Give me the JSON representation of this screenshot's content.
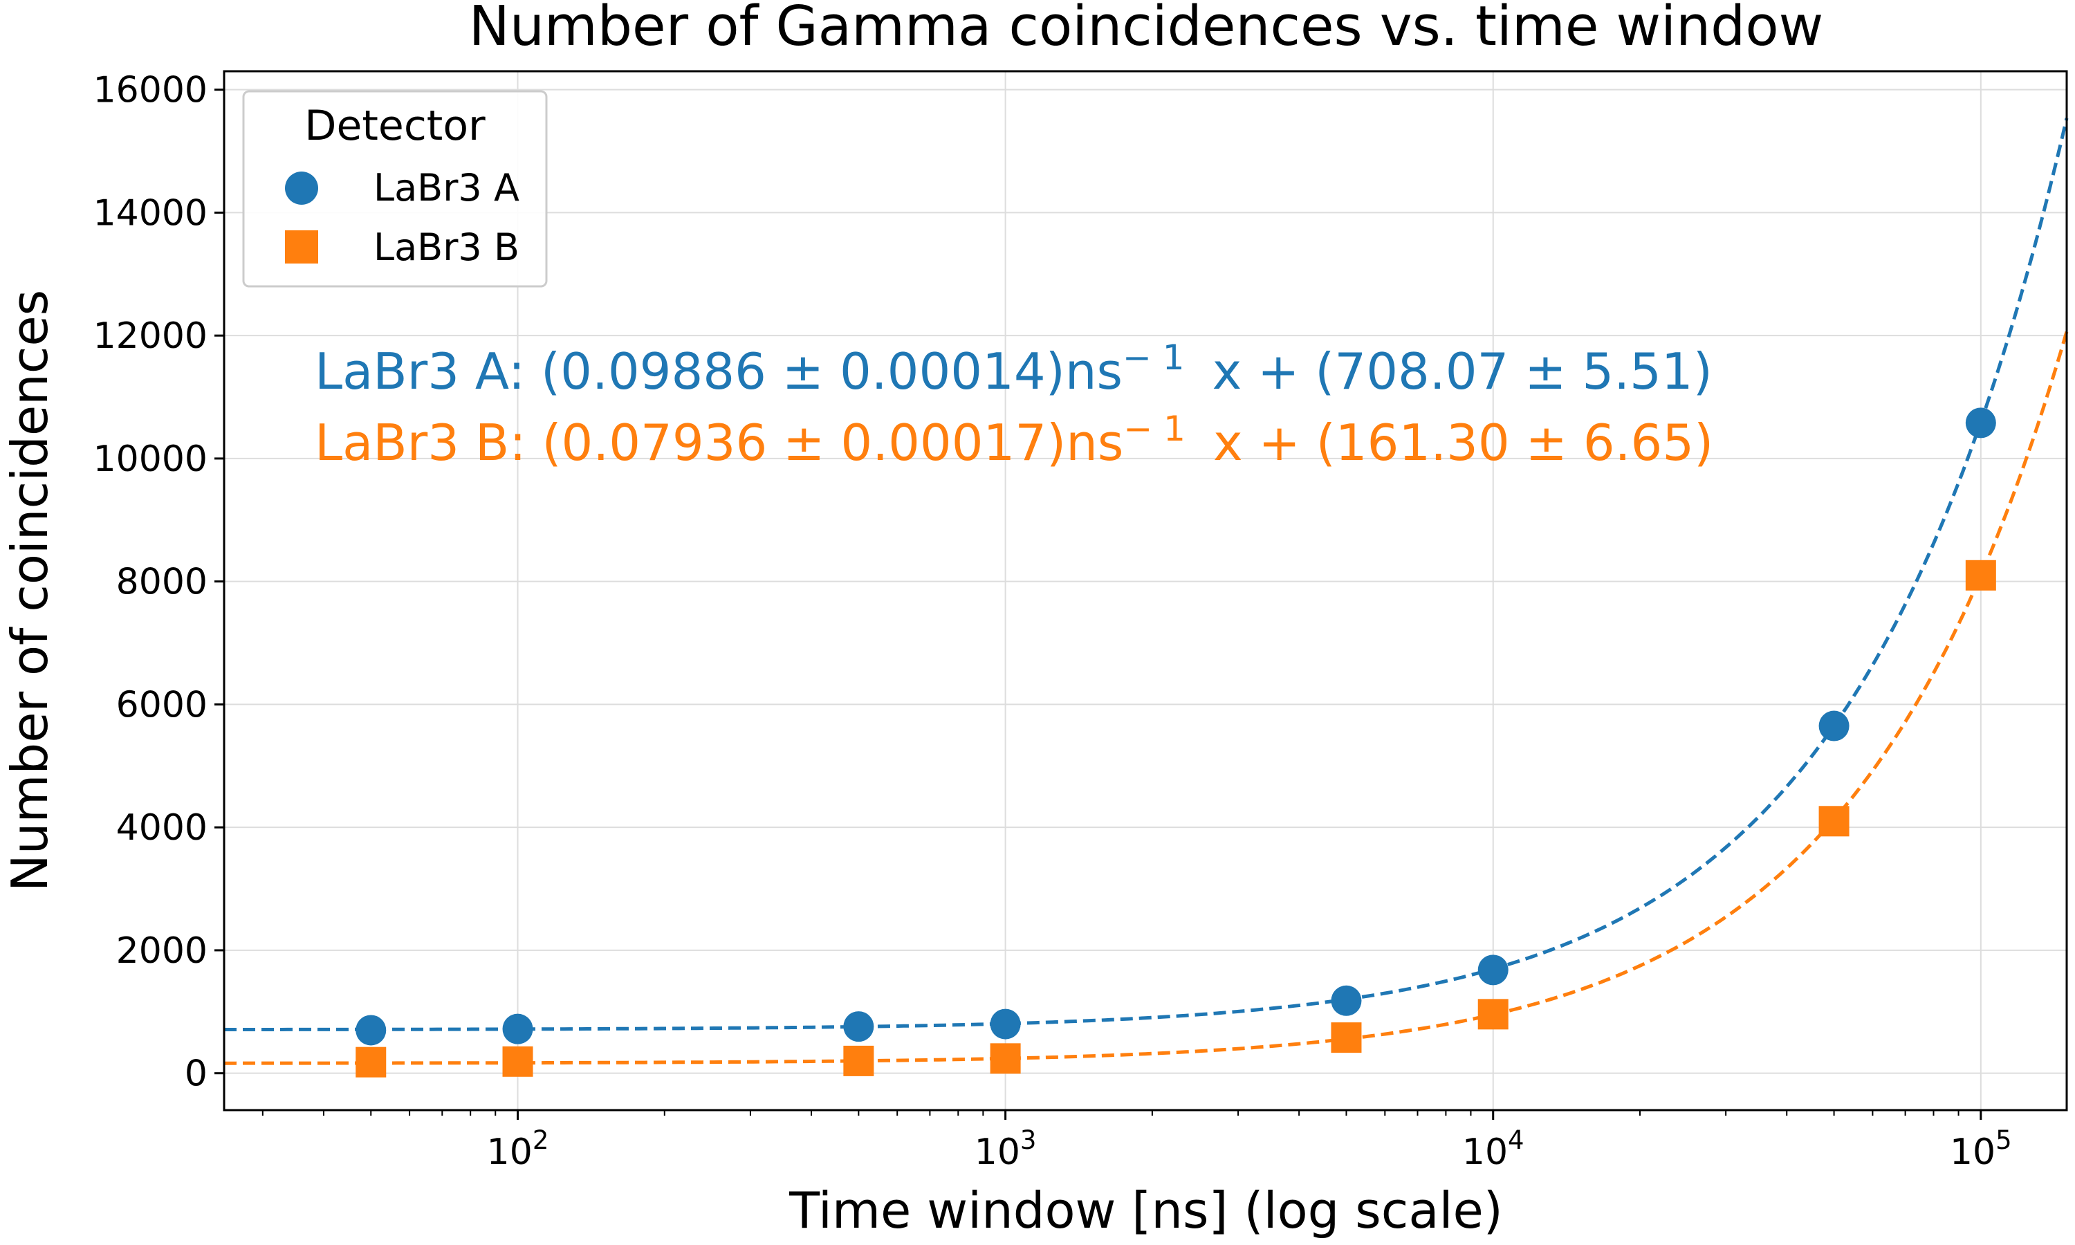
{
  "chart_data": {
    "type": "scatter",
    "title": "Number of Gamma coincidences vs. time window",
    "xlabel": "Time window [ns] (log scale)",
    "ylabel": "Number of coincidences",
    "xscale": "log",
    "xlim": [
      25,
      150000
    ],
    "ylim": [
      -600,
      16300
    ],
    "grid": true,
    "x_ticks": [
      {
        "value": 100,
        "base": "10",
        "exp": "2"
      },
      {
        "value": 1000,
        "base": "10",
        "exp": "3"
      },
      {
        "value": 10000,
        "base": "10",
        "exp": "4"
      },
      {
        "value": 100000,
        "base": "10",
        "exp": "5"
      }
    ],
    "y_ticks": [
      0,
      2000,
      4000,
      6000,
      8000,
      10000,
      12000,
      14000,
      16000
    ],
    "legend": {
      "title": "Detector",
      "placement": "top-left",
      "entries": [
        {
          "label": "LaBr3 A",
          "marker": "circle",
          "color": "#1f77b4"
        },
        {
          "label": "LaBr3 B",
          "marker": "square",
          "color": "#ff7f0e"
        }
      ]
    },
    "series": [
      {
        "name": "LaBr3 A",
        "color": "#1f77b4",
        "marker": "circle",
        "x": [
          50,
          100,
          500,
          1000,
          5000,
          10000,
          50000,
          100000
        ],
        "y": [
          700,
          720,
          760,
          800,
          1180,
          1680,
          5650,
          10580
        ],
        "fit": {
          "slope": 0.09886,
          "intercept": 708.07
        },
        "fit_label": {
          "prefix": "LaBr3 A: (0.09886 ± 0.00014)ns",
          "sup": "− 1",
          "suffix": "x + (708.07 ± 5.51)"
        }
      },
      {
        "name": "LaBr3 B",
        "color": "#ff7f0e",
        "marker": "square",
        "x": [
          50,
          100,
          500,
          1000,
          5000,
          10000,
          50000,
          100000
        ],
        "y": [
          180,
          190,
          200,
          240,
          580,
          960,
          4100,
          8100
        ],
        "fit": {
          "slope": 0.07936,
          "intercept": 161.3
        },
        "fit_label": {
          "prefix": "LaBr3 B: (0.07936 ± 0.00017)ns",
          "sup": "− 1",
          "suffix": "x + (161.30 ± 6.65)"
        }
      }
    ]
  }
}
